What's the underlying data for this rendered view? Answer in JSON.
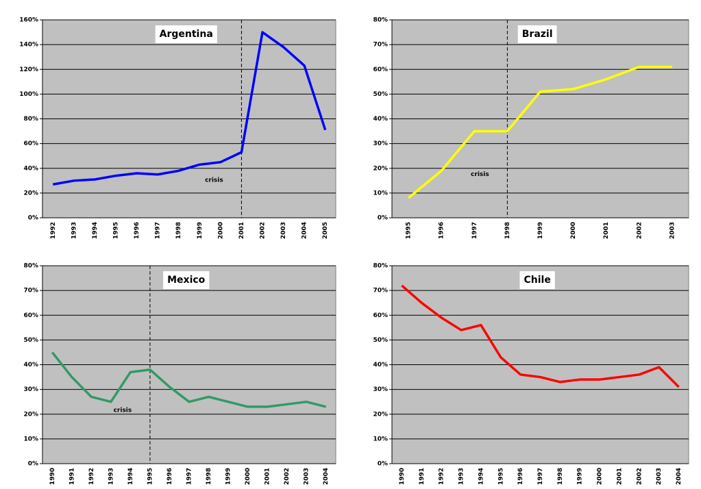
{
  "chart_data": [
    {
      "type": "line",
      "title": "Argentina",
      "annotation": "crisis",
      "crisis_category": "2001",
      "color": "#0000ff",
      "categories": [
        "1992",
        "1993",
        "1994",
        "1995",
        "1996",
        "1997",
        "1998",
        "1999",
        "2000",
        "2001",
        "2002",
        "2003",
        "2004",
        "2005"
      ],
      "values": [
        27,
        30,
        31,
        34,
        36,
        35,
        38,
        43,
        45,
        53,
        150,
        138,
        123,
        71
      ],
      "ylim": [
        0,
        160
      ],
      "grid": true,
      "yticks": [
        {
          "value": 0,
          "label": "0%"
        },
        {
          "value": 20,
          "label": "20%"
        },
        {
          "value": 40,
          "label": "40%"
        },
        {
          "value": 60,
          "label": "60%"
        },
        {
          "value": 80,
          "label": "80%"
        },
        {
          "value": 100,
          "label": "100%"
        },
        {
          "value": 120,
          "label": "120%"
        },
        {
          "value": 140,
          "label": "140%"
        },
        {
          "value": 160,
          "label": "160%"
        }
      ]
    },
    {
      "type": "line",
      "title": "Brazil",
      "annotation": "crisis",
      "crisis_category": "1998",
      "color": "#ffff00",
      "categories": [
        "1995",
        "1996",
        "1997",
        "1998",
        "1999",
        "2000",
        "2001",
        "2002",
        "2003"
      ],
      "values": [
        8,
        19,
        35,
        35,
        51,
        52,
        56,
        61,
        61
      ],
      "ylim": [
        0,
        80
      ],
      "grid": true,
      "yticks": [
        {
          "value": 0,
          "label": "0%"
        },
        {
          "value": 10,
          "label": "10%"
        },
        {
          "value": 20,
          "label": "20%"
        },
        {
          "value": 30,
          "label": "30%"
        },
        {
          "value": 40,
          "label": "40%"
        },
        {
          "value": 50,
          "label": "50%"
        },
        {
          "value": 60,
          "label": "60%"
        },
        {
          "value": 70,
          "label": "70%"
        },
        {
          "value": 80,
          "label": "80%"
        }
      ]
    },
    {
      "type": "line",
      "title": "Mexico",
      "annotation": "crisis",
      "crisis_category": "1995",
      "color": "#339966",
      "categories": [
        "1990",
        "1991",
        "1992",
        "1993",
        "1994",
        "1995",
        "1996",
        "1997",
        "1998",
        "1999",
        "2000",
        "2001",
        "2002",
        "2003",
        "2004"
      ],
      "values": [
        45,
        35,
        27,
        25,
        37,
        38,
        31,
        25,
        27,
        25,
        23,
        23,
        24,
        25,
        23
      ],
      "ylim": [
        0,
        80
      ],
      "grid": true,
      "yticks": [
        {
          "value": 0,
          "label": "0%"
        },
        {
          "value": 10,
          "label": "10%"
        },
        {
          "value": 20,
          "label": "20%"
        },
        {
          "value": 30,
          "label": "30%"
        },
        {
          "value": 40,
          "label": "40%"
        },
        {
          "value": 50,
          "label": "50%"
        },
        {
          "value": 60,
          "label": "60%"
        },
        {
          "value": 70,
          "label": "70%"
        },
        {
          "value": 80,
          "label": "80%"
        }
      ]
    },
    {
      "type": "line",
      "title": "Chile",
      "color": "#ff0000",
      "categories": [
        "1990",
        "1991",
        "1992",
        "1993",
        "1994",
        "1995",
        "1996",
        "1997",
        "1998",
        "1999",
        "2000",
        "2001",
        "2002",
        "2003",
        "2004"
      ],
      "values": [
        72,
        65,
        59,
        54,
        56,
        43,
        36,
        35,
        33,
        34,
        34,
        35,
        36,
        39,
        31
      ],
      "ylim": [
        0,
        80
      ],
      "grid": true,
      "yticks": [
        {
          "value": 0,
          "label": "0%"
        },
        {
          "value": 10,
          "label": "10%"
        },
        {
          "value": 20,
          "label": "20%"
        },
        {
          "value": 30,
          "label": "30%"
        },
        {
          "value": 40,
          "label": "40%"
        },
        {
          "value": 50,
          "label": "50%"
        },
        {
          "value": 60,
          "label": "60%"
        },
        {
          "value": 70,
          "label": "70%"
        },
        {
          "value": 80,
          "label": "80%"
        }
      ]
    }
  ]
}
